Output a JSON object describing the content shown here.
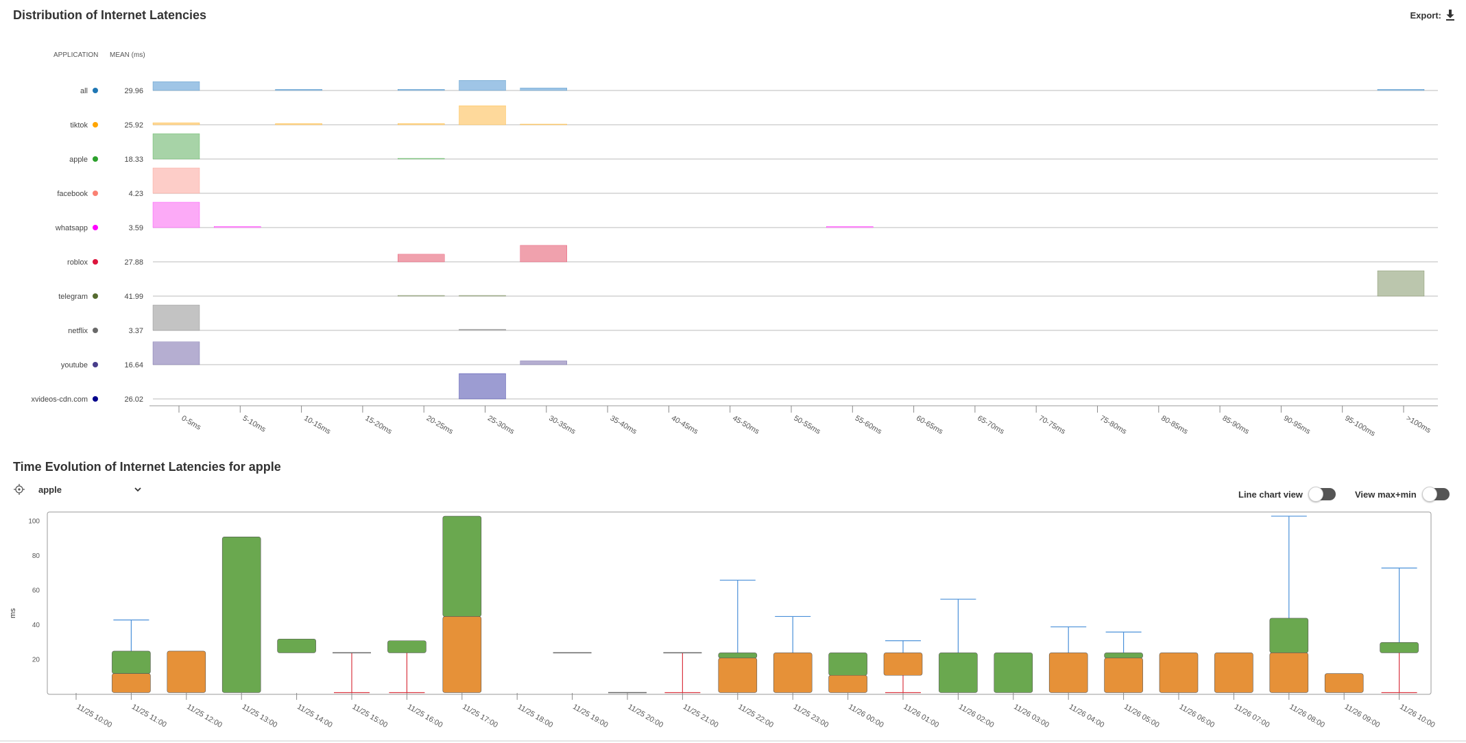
{
  "distribution": {
    "title": "Distribution of Internet Latencies",
    "export_label": "Export:",
    "headers": {
      "application": "APPLICATION",
      "mean": "MEAN (ms)"
    }
  },
  "evolution": {
    "title": "Time Evolution of Internet Latencies for apple",
    "selected_app": "apple",
    "line_chart_label": "Line chart view",
    "maxmin_label": "View max+min"
  },
  "chart_data": [
    {
      "type": "bar",
      "subtype": "ridge-histogram",
      "categories": [
        "0-5ms",
        "5-10ms",
        "10-15ms",
        "15-20ms",
        "20-25ms",
        "25-30ms",
        "30-35ms",
        "35-40ms",
        "40-45ms",
        "45-50ms",
        "50-55ms",
        "55-60ms",
        "60-65ms",
        "65-70ms",
        "70-75ms",
        "75-80ms",
        "80-85ms",
        "85-90ms",
        "90-95ms",
        "95-100ms",
        ">100ms"
      ],
      "series": [
        {
          "name": "all",
          "mean": "29.96",
          "color": "#1f77b4",
          "fill": "#9fc5e6",
          "values": [
            0.35,
            0,
            0.05,
            0,
            0.05,
            0.4,
            0.1,
            0,
            0,
            0,
            0,
            0,
            0,
            0,
            0,
            0,
            0,
            0,
            0,
            0,
            0.05
          ]
        },
        {
          "name": "tiktok",
          "mean": "25.92",
          "color": "#ffa500",
          "fill": "#fed99b",
          "values": [
            0.08,
            0,
            0.05,
            0,
            0.05,
            0.75,
            0.02,
            0,
            0,
            0,
            0,
            0,
            0,
            0,
            0,
            0,
            0,
            0,
            0,
            0,
            0
          ]
        },
        {
          "name": "apple",
          "mean": "18.33",
          "color": "#2ca02c",
          "fill": "#a7d3a7",
          "values": [
            1.0,
            0,
            0,
            0,
            0.02,
            0,
            0,
            0,
            0,
            0,
            0,
            0,
            0,
            0,
            0,
            0,
            0,
            0,
            0,
            0,
            0
          ]
        },
        {
          "name": "facebook",
          "mean": "4.23",
          "color": "#fa8072",
          "fill": "#fdcdc8",
          "values": [
            1.0,
            0,
            0,
            0,
            0,
            0,
            0,
            0,
            0,
            0,
            0,
            0,
            0,
            0,
            0,
            0,
            0,
            0,
            0,
            0,
            0
          ]
        },
        {
          "name": "whatsapp",
          "mean": "3.59",
          "color": "#ff00ff",
          "fill": "#fcaaf7",
          "values": [
            1.0,
            0.05,
            0,
            0,
            0,
            0,
            0,
            0,
            0,
            0,
            0,
            0.05,
            0,
            0,
            0,
            0,
            0,
            0,
            0,
            0,
            0
          ]
        },
        {
          "name": "roblox",
          "mean": "27.88",
          "color": "#dc143c",
          "fill": "#f0a1ad",
          "values": [
            0,
            0,
            0,
            0,
            0.3,
            0,
            0.65,
            0,
            0,
            0,
            0,
            0,
            0,
            0,
            0,
            0,
            0,
            0,
            0,
            0,
            0
          ]
        },
        {
          "name": "telegram",
          "mean": "41.99",
          "color": "#556b2f",
          "fill": "#bbc6ad",
          "values": [
            0,
            0,
            0,
            0,
            0.02,
            0.02,
            0,
            0,
            0,
            0,
            0,
            0,
            0,
            0,
            0,
            0,
            0,
            0,
            0,
            0,
            1.0
          ]
        },
        {
          "name": "netflix",
          "mean": "3.37",
          "color": "#696969",
          "fill": "#c3c3c3",
          "values": [
            1.0,
            0,
            0,
            0,
            0,
            0.05,
            0,
            0,
            0,
            0,
            0,
            0,
            0,
            0,
            0,
            0,
            0,
            0,
            0,
            0,
            0
          ]
        },
        {
          "name": "youtube",
          "mean": "16.64",
          "color": "#483d8b",
          "fill": "#b5aed1",
          "values": [
            0.9,
            0,
            0,
            0,
            0,
            0,
            0.15,
            0,
            0,
            0,
            0,
            0,
            0,
            0,
            0,
            0,
            0,
            0,
            0,
            0,
            0
          ]
        },
        {
          "name": "xvideos-cdn.com",
          "mean": "26.02",
          "color": "#00008b",
          "fill": "#9c9cd2",
          "values": [
            0,
            0,
            0,
            0,
            0,
            1.0,
            0,
            0,
            0,
            0,
            0,
            0,
            0,
            0,
            0,
            0,
            0,
            0,
            0,
            0,
            0
          ]
        }
      ]
    },
    {
      "type": "bar",
      "subtype": "box",
      "ylabel": "ms",
      "ylim": [
        0,
        105
      ],
      "yticks": [
        20,
        40,
        60,
        80,
        100
      ],
      "x": [
        "11/25 10:00",
        "11/25 11:00",
        "11/25 12:00",
        "11/25 13:00",
        "11/25 14:00",
        "11/25 15:00",
        "11/25 16:00",
        "11/25 17:00",
        "11/25 18:00",
        "11/25 19:00",
        "11/25 20:00",
        "11/25 21:00",
        "11/25 22:00",
        "11/25 23:00",
        "11/26 00:00",
        "11/26 01:00",
        "11/26 02:00",
        "11/26 03:00",
        "11/26 04:00",
        "11/26 05:00",
        "11/26 06:00",
        "11/26 07:00",
        "11/26 08:00",
        "11/26 09:00",
        "11/26 10:00"
      ],
      "colors": {
        "upper": "#6aa84f",
        "lower": "#e69138",
        "whisker_up": "#4a90d9",
        "whisker_down": "#d9343f"
      },
      "boxes": [
        null,
        {
          "q1": 1,
          "median": 12,
          "q3": 25,
          "max": 43
        },
        {
          "q1": 1,
          "median": 25,
          "q3": 25
        },
        {
          "q1": 1,
          "median": 1,
          "q3": 91
        },
        {
          "q1": 24,
          "median": 24,
          "q3": 32
        },
        {
          "q1": 24,
          "median": 24,
          "q3": 24,
          "min": 1
        },
        {
          "q1": 24,
          "median": 24,
          "q3": 31,
          "min": 1
        },
        {
          "q1": 1,
          "median": 45,
          "q3": 103
        },
        null,
        {
          "q1": 24,
          "median": 24,
          "q3": 24
        },
        {
          "q1": 1,
          "median": 1,
          "q3": 1
        },
        {
          "q1": 24,
          "median": 24,
          "q3": 24,
          "min": 1
        },
        {
          "q1": 1,
          "median": 21,
          "q3": 24,
          "max": 66
        },
        {
          "q1": 1,
          "median": 24,
          "q3": 24,
          "max": 45
        },
        {
          "q1": 1,
          "median": 11,
          "q3": 24
        },
        {
          "q1": 11,
          "median": 24,
          "q3": 24,
          "max": 31,
          "min": 1
        },
        {
          "q1": 1,
          "median": 1,
          "q3": 24,
          "max": 55
        },
        {
          "q1": 1,
          "median": 1,
          "q3": 24
        },
        {
          "q1": 1,
          "median": 24,
          "q3": 24,
          "max": 39
        },
        {
          "q1": 1,
          "median": 21,
          "q3": 24,
          "max": 36
        },
        {
          "q1": 1,
          "median": 24,
          "q3": 24
        },
        {
          "q1": 1,
          "median": 24,
          "q3": 24
        },
        {
          "q1": 1,
          "median": 24,
          "q3": 44,
          "max": 103
        },
        {
          "q1": 1,
          "median": 12,
          "q3": 12
        },
        {
          "q1": 24,
          "median": 24,
          "q3": 30,
          "max": 73,
          "min": 1
        }
      ]
    }
  ]
}
